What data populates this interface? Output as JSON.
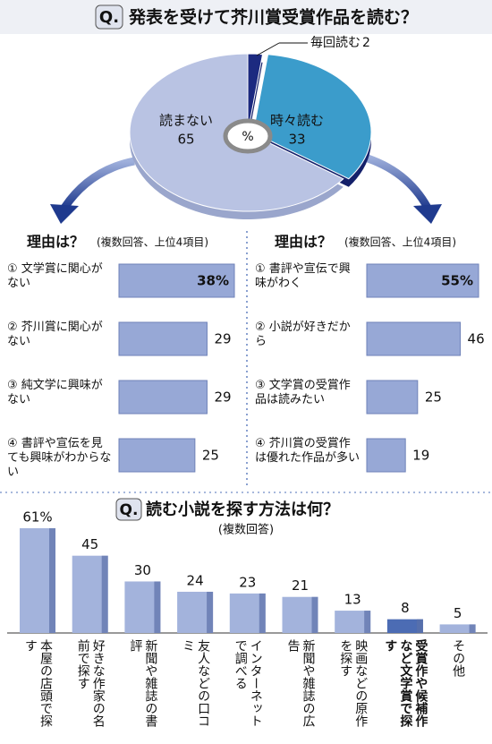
{
  "chart_data": [
    {
      "type": "pie",
      "title_prefix": "Q.",
      "title": "発表を受けて芥川賞受賞作品を読む？",
      "unit": "%",
      "categories": [
        "毎回読む",
        "時々読む",
        "読まない"
      ],
      "values": [
        2,
        33,
        65
      ],
      "colors": [
        "#1c2a80",
        "#3b9ccb",
        "#b9c3e3"
      ]
    },
    {
      "type": "hbar",
      "title": "理由は？",
      "subtitle": "(複数回答、上位4項目)",
      "categories": [
        "① 文学賞に関心がない",
        "② 芥川賞に関心がない",
        "③ 純文学に興味がない",
        "④ 書評や宣伝を見ても興味がわからない"
      ],
      "values": [
        38,
        29,
        29,
        25
      ],
      "value_labels": [
        "38%",
        "29",
        "29",
        "25"
      ],
      "color": "#97a8d6"
    },
    {
      "type": "hbar",
      "title": "理由は？",
      "subtitle": "(複数回答、上位4項目)",
      "categories": [
        "① 書評や宣伝で興味がわく",
        "② 小説が好きだから",
        "③ 文学賞の受賞作品は読みたい",
        "④ 芥川賞の受賞作は優れた作品が多い"
      ],
      "values": [
        55,
        46,
        25,
        19
      ],
      "value_labels": [
        "55%",
        "46",
        "25",
        "19"
      ],
      "color": "#97a8d6"
    },
    {
      "type": "bar",
      "title_prefix": "Q.",
      "title": "読む小説を探す方法は何？",
      "subtitle": "(複数回答)",
      "categories": [
        "本屋の店頭で探す",
        "好きな作家の名前で探す",
        "新聞や雑誌の書評",
        "友人などの口コミ",
        "インターネットで調べる",
        "新聞や雑誌の広告",
        "映画などの原作を探す",
        "受賞作や候補作など文学賞で探す",
        "その他"
      ],
      "values": [
        61,
        45,
        30,
        24,
        23,
        21,
        13,
        8,
        5
      ],
      "value_labels": [
        "61%",
        "45",
        "30",
        "24",
        "23",
        "21",
        "13",
        "8",
        "5"
      ],
      "colors": [
        "#a3b3dc",
        "#a3b3dc",
        "#a3b3dc",
        "#a3b3dc",
        "#a3b3dc",
        "#a3b3dc",
        "#a3b3dc",
        "#4c6cb4",
        "#a3b3dc"
      ]
    }
  ]
}
